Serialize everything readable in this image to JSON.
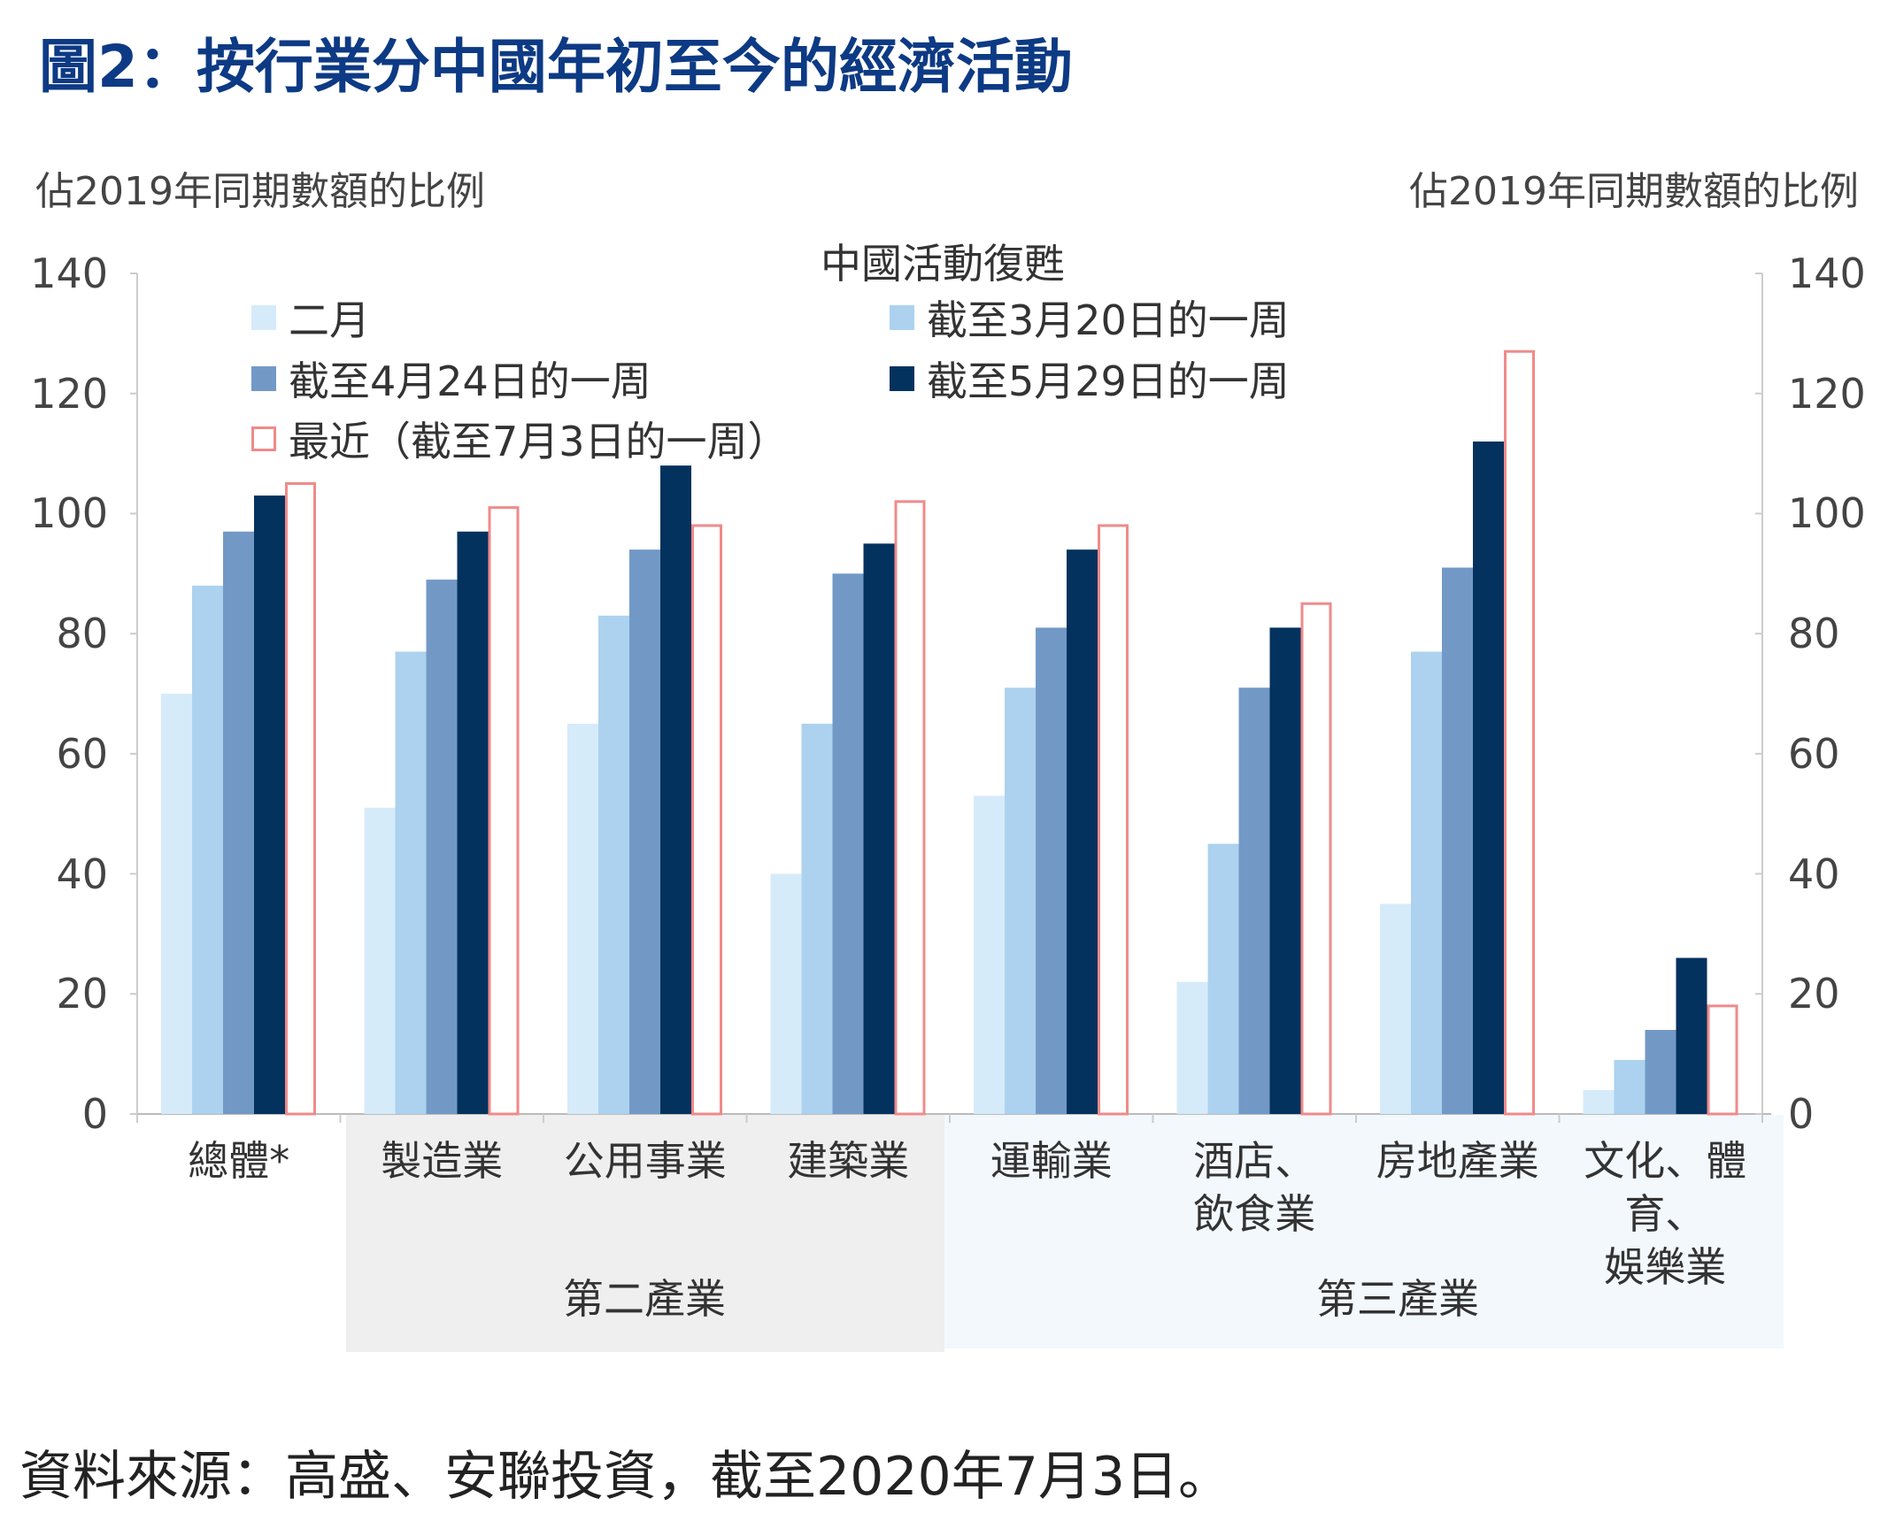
{
  "title": "圖2：按行業分中國年初至今的經濟活動",
  "chart_data": {
    "type": "bar",
    "title": "圖2：按行業分中國年初至今的經濟活動",
    "ylabel_left": "佔2019年同期數額的比例",
    "ylabel_right": "佔2019年同期數額的比例",
    "ylim": [
      0,
      140
    ],
    "yticks": [
      "0",
      "20",
      "40",
      "60",
      "80",
      "100",
      "120",
      "140"
    ],
    "grid": false,
    "legend_title": "中國活動復甦",
    "legend_position": "top",
    "categories": [
      "總體*",
      "製造業",
      "公用事業",
      "建築業",
      "運輸業",
      "酒店、\n飲食業",
      "房地產業",
      "文化、體育、\n娛樂業"
    ],
    "category_groups": [
      {
        "label": "第二產業",
        "color": "#efefef"
      },
      {
        "label": "第三產業",
        "color": "#f3f8fd"
      }
    ],
    "series": [
      {
        "name": "二月",
        "color": "#d6ebfa",
        "outline": false,
        "values": [
          70,
          51,
          65,
          40,
          53,
          22,
          35,
          4
        ]
      },
      {
        "name": "截至3月20日的一周",
        "color": "#acd2ef",
        "outline": false,
        "values": [
          88,
          77,
          83,
          65,
          71,
          45,
          77,
          9
        ]
      },
      {
        "name": "截至4月24日的一周",
        "color": "#7299c6",
        "outline": false,
        "values": [
          97,
          89,
          94,
          90,
          81,
          71,
          91,
          14
        ]
      },
      {
        "name": "截至5月29日的一周",
        "color": "#03325e",
        "outline": false,
        "values": [
          103,
          97,
          108,
          95,
          94,
          81,
          112,
          26
        ]
      },
      {
        "name": "最近（截至7月3日的一周）",
        "color": "#f08a8a",
        "outline": true,
        "values": [
          105,
          101,
          98,
          102,
          98,
          85,
          127,
          18
        ]
      }
    ]
  },
  "source": "資料來源：高盛、安聯投資，截至2020年7月3日。"
}
